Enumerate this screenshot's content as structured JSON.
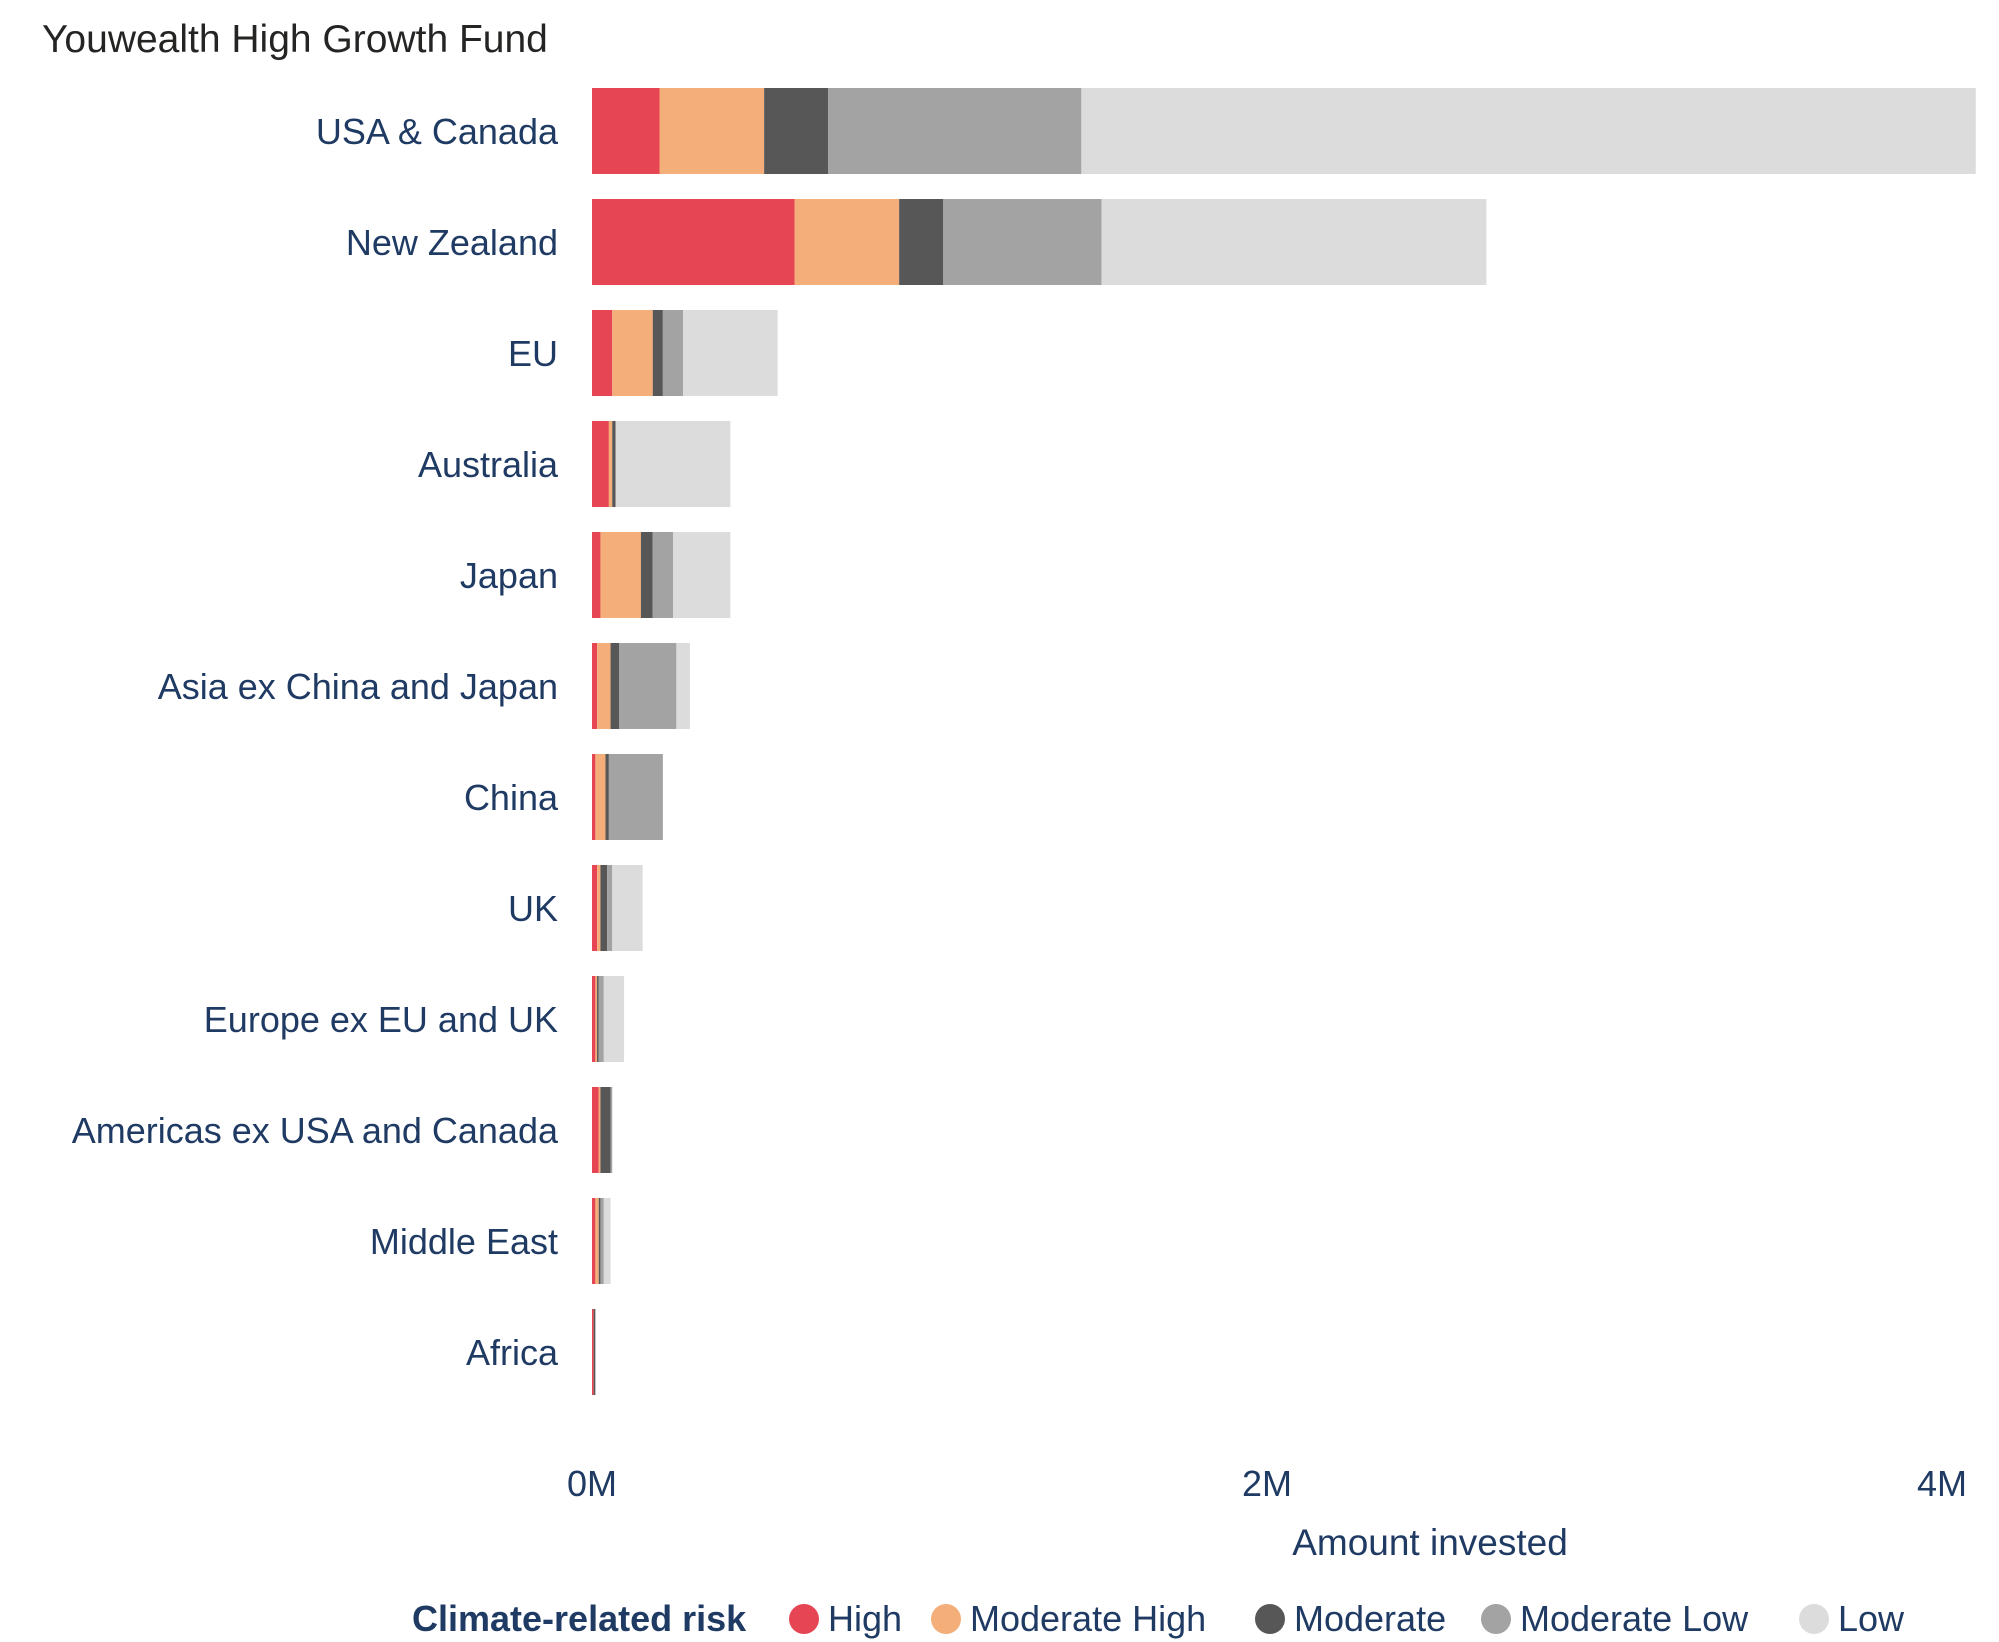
{
  "chart_data": {
    "type": "bar",
    "orientation": "horizontal",
    "stacked": true,
    "title": "Youwealth High Growth Fund",
    "xlabel": "Amount invested",
    "ylabel": "",
    "xlim": [
      0,
      4100000
    ],
    "x_ticks": [
      {
        "value": 0,
        "label": "0M"
      },
      {
        "value": 2000000,
        "label": "2M"
      },
      {
        "value": 4000000,
        "label": "4M"
      }
    ],
    "grid": false,
    "legend": {
      "title": "Climate-related risk",
      "position": "bottom",
      "entries": [
        "High",
        "Moderate High",
        "Moderate",
        "Moderate Low",
        "Low"
      ]
    },
    "categories": [
      "USA & Canada",
      "New Zealand",
      "EU",
      "Australia",
      "Japan",
      "Asia ex China and Japan",
      "China",
      "UK",
      "Europe ex EU and UK",
      "Americas ex USA and Canada",
      "Middle East",
      "Africa"
    ],
    "series": [
      {
        "name": "High",
        "color": "#E64554",
        "values": [
          200000,
          600000,
          60000,
          50000,
          25000,
          15000,
          10000,
          15000,
          10000,
          20000,
          10000,
          5000
        ]
      },
      {
        "name": "Moderate High",
        "color": "#F4AE7A",
        "values": [
          310000,
          310000,
          120000,
          10000,
          120000,
          40000,
          30000,
          10000,
          5000,
          5000,
          10000,
          0
        ]
      },
      {
        "name": "Moderate",
        "color": "#575757",
        "values": [
          190000,
          130000,
          30000,
          10000,
          35000,
          25000,
          10000,
          20000,
          5000,
          30000,
          5000,
          5000
        ]
      },
      {
        "name": "Moderate Low",
        "color": "#A3A3A3",
        "values": [
          750000,
          470000,
          60000,
          0,
          60000,
          170000,
          160000,
          15000,
          15000,
          5000,
          10000,
          0
        ]
      },
      {
        "name": "Low",
        "color": "#DCDCDC",
        "values": [
          2650000,
          1140000,
          280000,
          340000,
          170000,
          40000,
          0,
          90000,
          60000,
          0,
          20000,
          0
        ]
      }
    ]
  }
}
